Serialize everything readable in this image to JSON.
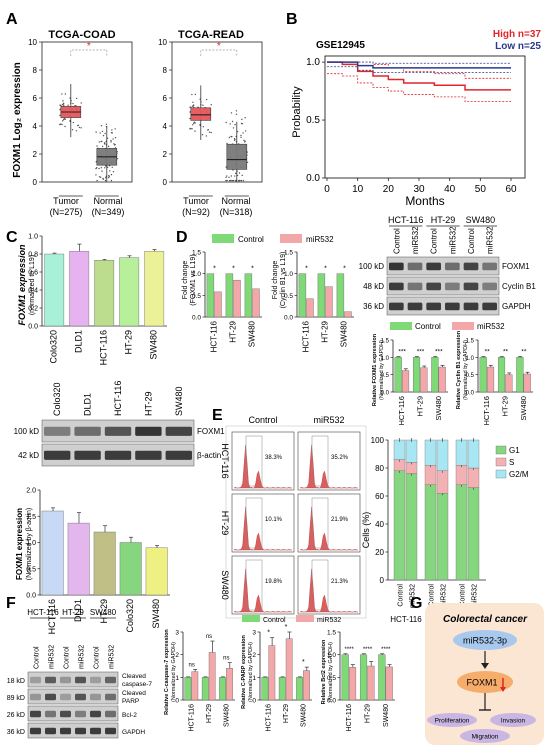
{
  "panel_letters": {
    "a": "A",
    "b": "B",
    "c": "C",
    "d": "D",
    "e": "E",
    "f": "F",
    "g": "G"
  },
  "colors": {
    "tumor": "#e8585c",
    "normal": "#7a7a7a",
    "control": "#7fd977",
    "mir": "#f4a7a8",
    "high": "#e0252b",
    "low": "#2a3a8c",
    "g1": "#86d67f",
    "s": "#f3b1b3",
    "g2m": "#a9e6f3",
    "flow_red": "#d94040",
    "g_box": "#fbe6d4",
    "mir_oval": "#a8c8ee",
    "foxm1_oval": "#f6ad6b",
    "pheno_oval": "#c9b6e2",
    "blot_bg": "#cfcfcf",
    "band": "#2b2b2b"
  },
  "panelA": {
    "ylabel": "FOXM1 Log₂ expression",
    "coad": {
      "title": "TCGA-COAD",
      "yticks": [
        "0",
        "2",
        "4",
        "6",
        "8",
        "10"
      ],
      "star": "*",
      "groups": [
        "Tumor",
        "Normal"
      ],
      "ns": [
        "(N=275)",
        "(N=349)"
      ]
    },
    "read": {
      "title": "TCGA-READ",
      "yticks": [
        "0",
        "2",
        "4",
        "6",
        "8",
        "10"
      ],
      "star": "*",
      "groups": [
        "Tumor",
        "Normal"
      ],
      "ns": [
        "(N=92)",
        "(N=318)"
      ]
    }
  },
  "panelB": {
    "title": "GSE12945",
    "legend": [
      "High n=37",
      "Low n=25"
    ],
    "ylabel": "Probability",
    "xlabel": "Months",
    "yticks": [
      "0.0",
      "0.5",
      "1.0"
    ],
    "xticks": [
      "0",
      "10",
      "20",
      "30",
      "40",
      "50",
      "60"
    ]
  },
  "panelC": {
    "ylabel": "FOXM1 expression",
    "ylabel2": "(normalized to L19)",
    "yticks": [
      "0.0",
      "0.2",
      "0.4",
      "0.6",
      "0.8",
      "1.0"
    ],
    "cell_lines": [
      "Colo320",
      "DLD1",
      "HCT-116",
      "HT-29",
      "SW480"
    ],
    "blot_lanes": [
      "Colo320",
      "DLD1",
      "HCT-116",
      "HT-29",
      "SW480"
    ],
    "blot_kd": [
      "100 kD",
      "42 kD"
    ],
    "blot_proteins": [
      "FOXM1",
      "β-actin"
    ],
    "bar2_ylabel": "FOXM1 expression",
    "bar2_ylabel2": "(Normalized by β-actin)",
    "bar2_yticks": [
      "0.0",
      "0.5",
      "1.0",
      "1.5",
      "2.0"
    ],
    "bar2_lines": [
      "HCT-116",
      "DLD1",
      "HT-29",
      "Colo320",
      "SW480"
    ]
  },
  "panelD": {
    "legend": [
      "Control",
      "miR532"
    ],
    "left_ylabel": "Fold change",
    "left_ylabel2": "(FOXM1 vs L19)",
    "right_ylabel": "Fold change",
    "right_ylabel2": "(Cyclin B1 vs L19)",
    "yticks": [
      "0.0",
      "0.5",
      "1.0",
      "1.5"
    ],
    "cell_lines": [
      "HCT-116",
      "HT-29",
      "SW480"
    ],
    "stars": [
      "*",
      "*",
      "*"
    ],
    "blot_groups": [
      "HCT-116",
      "HT-29",
      "SW480"
    ],
    "blot_lanes": [
      "Control",
      "miR532",
      "Control",
      "miR532",
      "Control",
      "miR532"
    ],
    "blot_kd": [
      "100 kD",
      "48 kD",
      "36 kD"
    ],
    "blot_proteins": [
      "FOXM1",
      "Cyclin B1",
      "GAPDH"
    ],
    "q_left_ylabel": "Relative FOXM1 expression",
    "q_left_ylabel2": "(Normalized by GAPDH)",
    "q_right_ylabel": "Relative Cyclin B1 expression",
    "q_right_ylabel2": "(Normalized by GAPDH)",
    "q_yticks": [
      "0.0",
      "0.5",
      "1.0",
      "1.5"
    ],
    "q_left_stars": [
      "***",
      "***",
      "***"
    ],
    "q_right_stars": [
      "**",
      "**",
      "**"
    ]
  },
  "panelE": {
    "cols": [
      "Control",
      "miR532"
    ],
    "rows": [
      "HCT-116",
      "HT-29",
      "SW480"
    ],
    "percents": [
      "38.3%",
      "35.2%",
      "10.1%",
      "21.9%",
      "19.8%",
      "21.3%"
    ],
    "ylabel": "Cells (%)",
    "yticks": [
      "0",
      "20",
      "40",
      "60",
      "80",
      "100"
    ],
    "legend": [
      "G1",
      "S",
      "G2/M"
    ],
    "lanes": [
      "Control",
      "miR532",
      "Control",
      "miR532",
      "Control",
      "miR532"
    ],
    "groups": [
      "HCT-116",
      "HT-29",
      "SW480"
    ]
  },
  "panelF": {
    "groups": [
      "HCT-116",
      "HT-29",
      "SW480"
    ],
    "lanes": [
      "Control",
      "miR532",
      "Control",
      "miR532",
      "Control",
      "miR532"
    ],
    "kd": [
      "18 kD",
      "89 kD",
      "26 kD",
      "36 kD"
    ],
    "proteins": [
      "Cleaved caspase-7",
      "Cleaved PARP",
      "Bcl-2",
      "GAPDH"
    ],
    "legend": [
      "Control",
      "miR532"
    ],
    "casp_ylabel": "Relative C-caspase-7 expression",
    "casp_ylabel2": "(Normalized by GAPDH)",
    "casp_yticks": [
      "0",
      "1",
      "2",
      "3"
    ],
    "casp_stars": [
      "ns",
      "ns",
      "ns"
    ],
    "parp_ylabel": "Relative C-PARP expression",
    "parp_ylabel2": "(Normalized by GAPDH)",
    "parp_yticks": [
      "0",
      "1",
      "2",
      "3"
    ],
    "parp_stars": [
      "*",
      "*",
      "*"
    ],
    "bcl_ylabel": "Relative Bcl2 expression",
    "bcl_ylabel2": "(Normalized by GAPDH)",
    "bcl_yticks": [
      "0.0",
      "0.5",
      "1.0",
      "1.5"
    ],
    "bcl_stars": [
      "****",
      "****",
      "****"
    ],
    "cell_lines": [
      "HCT-116",
      "HT-29",
      "SW480"
    ]
  },
  "panelG": {
    "title": "Colorectal cancer",
    "mir": "miR532-3p",
    "target": "FOXM1",
    "phenos": [
      "Proliferation",
      "Invasion",
      "Migration"
    ]
  },
  "chart_data": [
    {
      "type": "box",
      "title": "TCGA-COAD",
      "ylabel": "FOXM1 Log₂ expression",
      "categories": [
        "Tumor",
        "Normal"
      ],
      "medians": [
        5.0,
        1.8
      ],
      "q1": [
        4.6,
        1.2
      ],
      "q3": [
        5.4,
        2.4
      ],
      "ylim": [
        0,
        10
      ]
    },
    {
      "type": "box",
      "title": "TCGA-READ",
      "ylabel": "FOXM1 Log₂ expression",
      "categories": [
        "Tumor",
        "Normal"
      ],
      "medians": [
        4.8,
        1.6
      ],
      "q1": [
        4.4,
        0.9
      ],
      "q3": [
        5.3,
        2.7
      ],
      "ylim": [
        0,
        10
      ]
    },
    {
      "type": "line",
      "title": "GSE12945",
      "xlabel": "Months",
      "ylabel": "Probability",
      "xlim": [
        0,
        60
      ],
      "ylim": [
        0,
        1
      ],
      "series": [
        {
          "name": "High n=37",
          "x": [
            0,
            5,
            10,
            15,
            20,
            25,
            30,
            35,
            40,
            45,
            50,
            55,
            60
          ],
          "y": [
            1.0,
            0.98,
            0.92,
            0.88,
            0.85,
            0.82,
            0.82,
            0.8,
            0.8,
            0.76,
            0.76,
            0.76,
            0.76
          ]
        },
        {
          "name": "Low n=25",
          "x": [
            0,
            5,
            10,
            15,
            20,
            25,
            30,
            35,
            40,
            45,
            50,
            55,
            60
          ],
          "y": [
            1.0,
            1.0,
            0.97,
            0.95,
            0.95,
            0.95,
            0.95,
            0.95,
            0.95,
            0.95,
            0.95,
            0.95,
            0.95
          ]
        }
      ]
    },
    {
      "type": "bar",
      "ylabel": "FOXM1 expression (normalized to L19)",
      "categories": [
        "Colo320",
        "DLD1",
        "HCT-116",
        "HT-29",
        "SW480"
      ],
      "values": [
        0.8,
        0.83,
        0.73,
        0.76,
        0.83
      ],
      "errors": [
        0.01,
        0.08,
        0.01,
        0.02,
        0.02
      ],
      "colors": [
        "#a8f0d8",
        "#e6b3f0",
        "#bcdc8e",
        "#b7ef9a",
        "#ecf097"
      ],
      "ylim": [
        0,
        1.0
      ]
    },
    {
      "type": "bar",
      "ylabel": "FOXM1 expression (Normalized by β-actin)",
      "categories": [
        "HCT-116",
        "DLD1",
        "HT-29",
        "Colo320",
        "SW480"
      ],
      "values": [
        1.6,
        1.37,
        1.2,
        1.0,
        0.9
      ],
      "errors": [
        0.06,
        0.2,
        0.12,
        0.1,
        0.04
      ],
      "colors": [
        "#c7d9f5",
        "#e3b6ee",
        "#bfbf86",
        "#86d67f",
        "#eef082"
      ],
      "ylim": [
        0,
        2.0
      ]
    },
    {
      "type": "bar",
      "ylabel": "Fold change (FOXM1 vs L19)",
      "categories": [
        "HCT-116",
        "HT-29",
        "SW480"
      ],
      "series": [
        {
          "name": "Control",
          "values": [
            1.0,
            1.0,
            1.0
          ]
        },
        {
          "name": "miR532",
          "values": [
            0.58,
            0.85,
            0.65
          ]
        }
      ],
      "ylim": [
        0,
        1.5
      ]
    },
    {
      "type": "bar",
      "ylabel": "Fold change (Cyclin B1 vs L19)",
      "categories": [
        "HCT-116",
        "HT-29",
        "SW480"
      ],
      "series": [
        {
          "name": "Control",
          "values": [
            1.0,
            1.0,
            1.0
          ]
        },
        {
          "name": "miR532",
          "values": [
            0.42,
            0.7,
            0.12
          ]
        }
      ],
      "ylim": [
        0,
        1.5
      ]
    },
    {
      "type": "bar",
      "ylabel": "Relative FOXM1 expression (Normalized by GAPDH)",
      "categories": [
        "HCT-116",
        "HT-29",
        "SW480"
      ],
      "series": [
        {
          "name": "Control",
          "values": [
            1.0,
            1.0,
            1.0
          ]
        },
        {
          "name": "miR532",
          "values": [
            0.62,
            0.7,
            0.72
          ]
        }
      ],
      "ylim": [
        0,
        1.5
      ]
    },
    {
      "type": "bar",
      "ylabel": "Relative Cyclin B1 expression (Normalized by GAPDH)",
      "categories": [
        "HCT-116",
        "HT-29",
        "SW480"
      ],
      "series": [
        {
          "name": "Control",
          "values": [
            1.0,
            1.0,
            1.0
          ]
        },
        {
          "name": "miR532",
          "values": [
            0.72,
            0.5,
            0.52
          ]
        }
      ],
      "ylim": [
        0,
        1.5
      ]
    },
    {
      "type": "bar",
      "ylabel": "Cells (%)",
      "categories": [
        "HCT-116 Control",
        "HCT-116 miR532",
        "HT-29 Control",
        "HT-29 miR532",
        "SW480 Control",
        "SW480 miR532"
      ],
      "series": [
        {
          "name": "G1",
          "values": [
            78,
            76,
            68,
            62,
            68,
            66
          ]
        },
        {
          "name": "S",
          "values": [
            8,
            8,
            14,
            16,
            14,
            14
          ]
        },
        {
          "name": "G2/M",
          "values": [
            14,
            16,
            18,
            22,
            18,
            20
          ]
        }
      ],
      "ylim": [
        0,
        100
      ]
    },
    {
      "type": "bar",
      "ylabel": "Relative C-caspase-7 expression (Normalized by GAPDH)",
      "categories": [
        "HCT-116",
        "HT-29",
        "SW480"
      ],
      "series": [
        {
          "name": "Control",
          "values": [
            1.0,
            1.0,
            1.0
          ]
        },
        {
          "name": "miR532",
          "values": [
            1.25,
            2.1,
            1.4
          ]
        }
      ],
      "ylim": [
        0,
        3
      ]
    },
    {
      "type": "bar",
      "ylabel": "Relative C-PARP expression (Normalized by GAPDH)",
      "categories": [
        "HCT-116",
        "HT-29",
        "SW480"
      ],
      "series": [
        {
          "name": "Control",
          "values": [
            1.0,
            1.0,
            1.0
          ]
        },
        {
          "name": "miR532",
          "values": [
            2.4,
            2.7,
            1.3
          ]
        }
      ],
      "ylim": [
        0,
        3
      ]
    },
    {
      "type": "bar",
      "ylabel": "Relative Bcl2 expression (Normalized by GAPDH)",
      "categories": [
        "HCT-116",
        "HT-29",
        "SW480"
      ],
      "series": [
        {
          "name": "Control",
          "values": [
            1.0,
            1.0,
            1.0
          ]
        },
        {
          "name": "miR532",
          "values": [
            0.72,
            0.75,
            0.73
          ]
        }
      ],
      "ylim": [
        0,
        1.5
      ]
    }
  ]
}
